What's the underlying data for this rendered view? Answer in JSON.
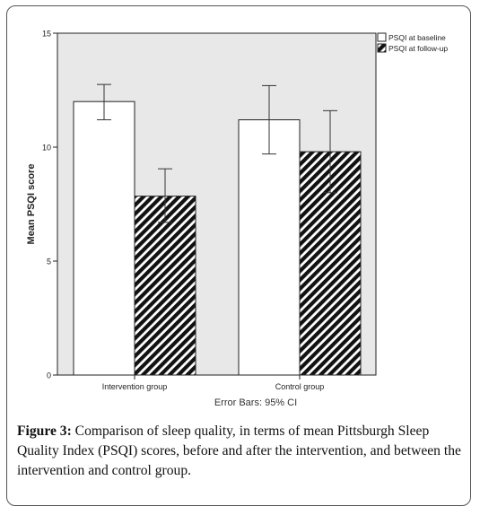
{
  "chart_data": {
    "type": "bar",
    "categories": [
      "Intervention group",
      "Control group"
    ],
    "series": [
      {
        "name": "PSQI at baseline",
        "values": [
          12.0,
          11.2
        ],
        "ci_lower": [
          11.2,
          9.7
        ],
        "ci_upper": [
          12.75,
          12.7
        ],
        "pattern": "solid-white"
      },
      {
        "name": "PSQI at follow-up",
        "values": [
          7.85,
          9.8
        ],
        "ci_lower": [
          6.7,
          8.0
        ],
        "ci_upper": [
          9.05,
          11.6
        ],
        "pattern": "diagonal-hatch"
      }
    ],
    "ylabel": "Mean PSQI score",
    "ylim": [
      0,
      15
    ],
    "yticks": [
      "0",
      "5",
      "10",
      "15"
    ],
    "error_bars_label": "Error Bars: 95% CI",
    "legend_position": "top-right",
    "grid": false,
    "plot_background": "#e8e8e8"
  },
  "caption": {
    "lead": "Figure 3:",
    "text": " Comparison of sleep quality, in terms of mean Pittsburgh Sleep Quality Index (PSQI) scores, before and after the intervention, and between the intervention and control group."
  }
}
